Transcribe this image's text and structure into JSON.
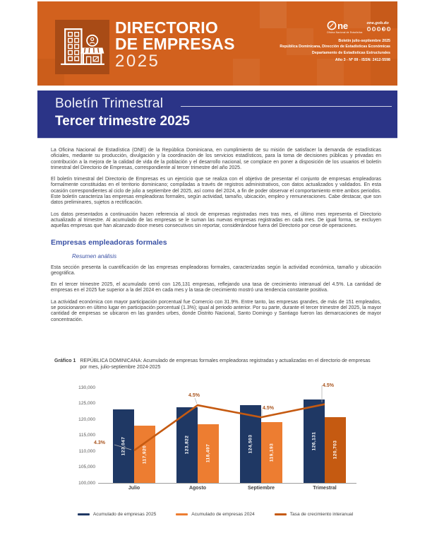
{
  "header": {
    "title_line1": "DIRECTORIO",
    "title_line2": "DE EMPRESAS",
    "title_year": "2025",
    "one_logo_text": "ne",
    "one_logo_tagline": "Oficina Nacional de Estadística",
    "website": "one.gob.do",
    "bulletin_lines": [
      "Boletín julio-septiembre 2025",
      "República Dominicana, Dirección de Estadísticas Económicas",
      "Departamento de Estadísticas Estructurales",
      "Año 3 - Nº 09 - ISSN: 2412-5598"
    ]
  },
  "banner": {
    "subtitle": "Boletín Trimestral",
    "title": "Tercer trimestre 2025"
  },
  "intro_paragraphs": [
    "La Oficina Nacional de Estadística (ONE) de la República Dominicana, en cumplimiento de su misión de satisfacer la demanda de estadísticas oficiales, mediante su producción, divulgación y la coordinación de los servicios estadísticos, para la toma de decisiones públicas y privadas en contribución a la mejora de la calidad de vida de la población y el desarrollo nacional, se complace en poner a disposición de los usuarios el boletín trimestral del Directorio de Empresas, correspondiente al tercer trimestre del año 2025.",
    "El boletín trimestral del Directorio de Empresas es un ejercicio que se realiza con el objetivo de presentar el conjunto de empresas empleadoras formalmente constituidas en el territorio dominicano; compiladas a través de registros administrativos, con datos actualizados y validados. En esta ocasión correspondientes al ciclo de julio a septiembre del 2025, así como del 2024, a fin de poder observar el comportamiento entre ambos periodos. Este boletín caracteriza las empresas empleadoras formales, según actividad, tamaño, ubicación, empleo y remuneraciones. Cabe destacar, que son datos preliminares, sujetos a rectificación.",
    "Los datos presentados a continuación hacen referencia al stock de empresas registradas mes tras mes, el último mes representa el Directorio actualizado al trimestre. Al acumulado de las empresas se le suman las nuevas empresas registradas en cada mes. De igual forma, se excluyen aquellas empresas que han alcanzado doce meses consecutivos sin reportar, considerándose fuera del Directorio por cese de operaciones."
  ],
  "section": {
    "heading": "Empresas empleadoras formales",
    "subheading": "Resumen análisis",
    "paragraphs": [
      "Esta sección presenta la cuantificación de las empresas empleadoras formales, caracterizadas según la actividad económica, tamaño y ubicación geográfica.",
      "En el tercer trimestre 2025, el acumulado cerró con 126,131 empresas, reflejando una tasa de crecimiento interanual del 4.5%. La cantidad de empresas en el 2025 fue superior a la del 2024 en cada mes y la tasa de crecimiento mostró una tendencia constante positiva.",
      "La actividad económica con mayor participación porcentual fue Comercio con 31.9%. Entre tanto, las empresas grandes, de más de 151 empleados, se posicionaron en último lugar en participación porcentual (1.3%); igual al periodo anterior. Por su parte, durante el tercer trimestre del 2025, la mayor cantidad de empresas se ubicaron en las grandes urbes, donde Distrito Nacional, Santo Domingo y Santiago fueron las demarcaciones de mayor concentración."
    ]
  },
  "chart": {
    "label": "Gráfico 1",
    "title": "REPÚBLICA DOMINICANA: Acumulado de empresas formales empleadoras registradas y actualizadas en el directorio de empresas por mes, julio-septiembre 2024-2025"
  },
  "chart_data": {
    "type": "bar",
    "categories": [
      "Julio",
      "Agosto",
      "Septiembre",
      "Trimestral"
    ],
    "series": [
      {
        "name": "Acumulado de empresas 2025",
        "color": "#1f3864",
        "values": [
          123047,
          123822,
          124503,
          126131
        ],
        "labels": [
          "123,047",
          "123,822",
          "124,503",
          "126,131"
        ]
      },
      {
        "name": "Acumulado de empresas 2024",
        "color": "#ed7d31",
        "bar_colors": [
          "#ed7d31",
          "#ed7d31",
          "#ed7d31",
          "#c55a11"
        ],
        "values": [
          117920,
          118497,
          119193,
          120703
        ],
        "labels": [
          "117,920",
          "118,497",
          "119,193",
          "120,703"
        ]
      }
    ],
    "line_series": {
      "name": "Tasa de crecimiento interanual",
      "color": "#c55a11",
      "values_pct": [
        4.3,
        4.5,
        4.5,
        4.5
      ],
      "labels": [
        "4.3%",
        "4.5%",
        "4.5%",
        "4.5%"
      ]
    },
    "ylim": [
      100000,
      130000
    ],
    "yticks": [
      "130,000",
      "125,000",
      "120,000",
      "115,000",
      "110,000",
      "105,000",
      "100,000"
    ],
    "secondary_ylim_pct": [
      4.243,
      4.551
    ],
    "grid": false,
    "legend_position": "bottom",
    "legend": [
      "Acumulado de empresas 2025",
      "Acumulado de empresas 2024",
      "Tasa de crecimiento interanual"
    ]
  },
  "colors": {
    "header_orange": "#d2611e",
    "tile_orange": "#a84b16",
    "banner_navy": "#2b3487",
    "heading_blue": "#3a51a5",
    "bar_2025": "#1f3864",
    "bar_2024": "#ed7d31",
    "dark_orange": "#c55a11",
    "growth_label": "#a9551f"
  }
}
